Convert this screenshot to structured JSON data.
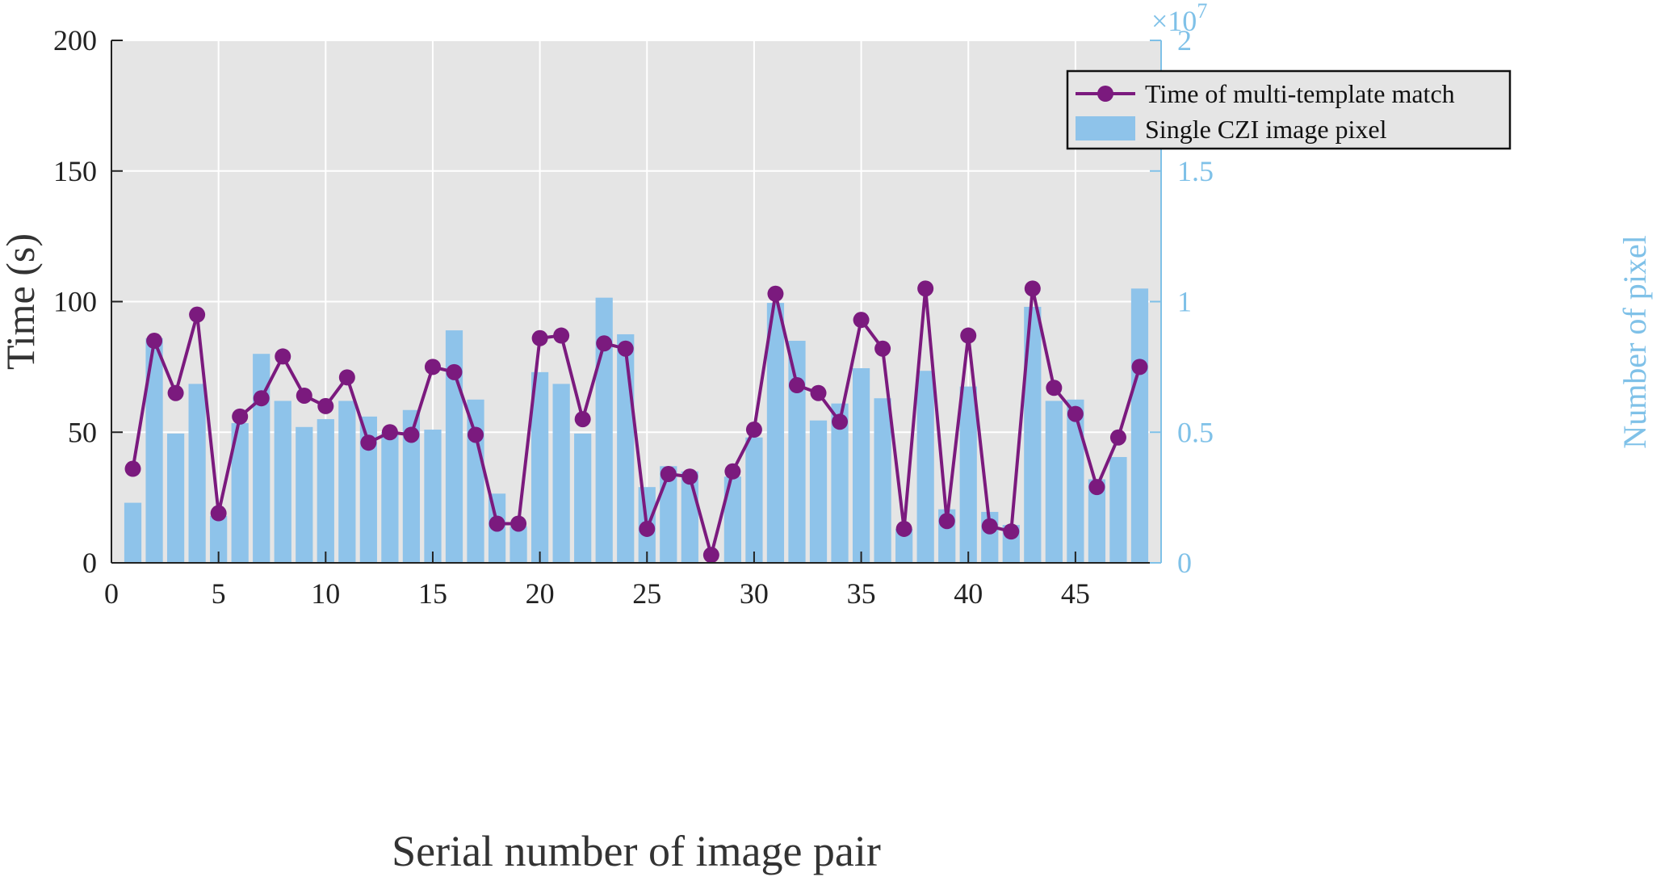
{
  "chart_data": {
    "type": "bar+line",
    "x": [
      1,
      2,
      3,
      4,
      5,
      6,
      7,
      8,
      9,
      10,
      11,
      12,
      13,
      14,
      15,
      16,
      17,
      18,
      19,
      20,
      21,
      22,
      23,
      24,
      25,
      26,
      27,
      28,
      29,
      30,
      31,
      32,
      33,
      34,
      35,
      36,
      37,
      38,
      39,
      40,
      41,
      42,
      43,
      44,
      45,
      46,
      47,
      48
    ],
    "series": [
      {
        "name": "Time of multi-template match",
        "type": "line",
        "axis": "left",
        "color": "#7b1a7e",
        "values": [
          36,
          85,
          65,
          95,
          19,
          56,
          63,
          79,
          64,
          60,
          71,
          46,
          50,
          49,
          75,
          73,
          49,
          15,
          15,
          86,
          87,
          55,
          84,
          82,
          13,
          34,
          33,
          3,
          35,
          51,
          103,
          68,
          65,
          54,
          93,
          82,
          13,
          105,
          16,
          87,
          14,
          12,
          105,
          67,
          57,
          29,
          48,
          75
        ]
      },
      {
        "name": "Single CZI image pixel",
        "type": "bar",
        "axis": "right",
        "color": "#8ec3ea",
        "values": [
          2300000,
          8600000,
          4950000,
          6850000,
          1800000,
          5350000,
          8000000,
          6200000,
          5200000,
          5500000,
          6200000,
          5600000,
          5000000,
          5850000,
          5100000,
          8900000,
          6250000,
          2650000,
          1400000,
          7300000,
          6850000,
          4950000,
          10150000,
          8750000,
          2900000,
          3700000,
          3500000,
          0,
          3300000,
          4800000,
          9950000,
          8500000,
          5450000,
          6100000,
          7450000,
          6300000,
          1300000,
          7350000,
          2050000,
          6750000,
          1950000,
          1450000,
          9800000,
          6200000,
          6250000,
          3200000,
          4050000,
          10500000
        ]
      }
    ],
    "xlabel": "Serial number of image pair",
    "ylabel": "Time (s)",
    "y2label": "Number of pixel",
    "y2_exponent": "×10",
    "y2_exponent_power": "7",
    "xlim": [
      0,
      49
    ],
    "ylim": [
      0,
      200
    ],
    "y2lim": [
      0,
      20000000
    ],
    "xticks": [
      0,
      5,
      10,
      15,
      20,
      25,
      30,
      35,
      40,
      45
    ],
    "yticks": [
      0,
      50,
      100,
      150,
      200
    ],
    "y2ticks": [
      0,
      5000000,
      10000000,
      15000000,
      20000000
    ],
    "y2ticklabels": [
      "0",
      "0.5",
      "1",
      "1.5",
      "2"
    ],
    "grid": true,
    "legend": "top-right",
    "colors": {
      "background": "#e5e5e5",
      "grid": "#ffffff",
      "right_axis": "#7fc1e8"
    }
  }
}
